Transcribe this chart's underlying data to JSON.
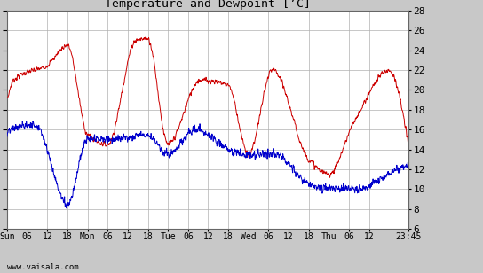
{
  "title": "Temperature and Dewpoint [’C]",
  "ylim": [
    6,
    28
  ],
  "yticks": [
    6,
    8,
    10,
    12,
    14,
    16,
    18,
    20,
    22,
    24,
    26,
    28
  ],
  "xtick_labels": [
    "Sun",
    "06",
    "12",
    "18",
    "Mon",
    "06",
    "12",
    "18",
    "Tue",
    "06",
    "12",
    "18",
    "Wed",
    "06",
    "12",
    "18",
    "Thu",
    "06",
    "12",
    "23:45"
  ],
  "temp_color": "#cc0000",
  "dewp_color": "#0000cc",
  "bg_color": "#c8c8c8",
  "plot_bg_color": "#ffffff",
  "grid_color": "#b0b0b0",
  "watermark": "www.vaisala.com",
  "total_days": 4.989583,
  "n_points": 1440
}
